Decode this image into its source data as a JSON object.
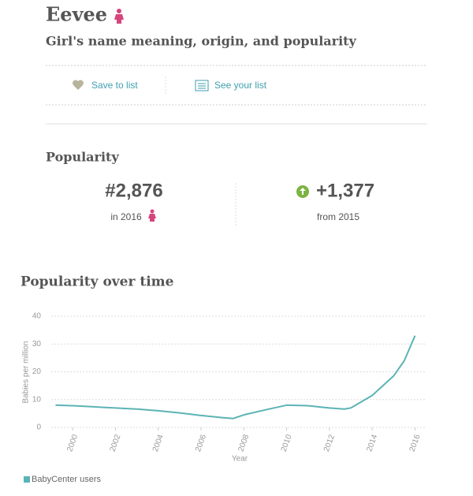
{
  "header": {
    "title": "Eevee",
    "subtitle": "Girl's name meaning, origin, and popularity"
  },
  "actions": [
    "Save to list",
    "See your list"
  ],
  "popularity": {
    "heading": "Popularity",
    "rank": "#2,876",
    "rank_note": "in 2016",
    "change": "+1,377",
    "change_note": "from 2015"
  },
  "chart_data": {
    "type": "line",
    "title": "Popularity over time",
    "x_label": "Year",
    "y_label": "Babies per million",
    "x": [
      1999.2,
      2000,
      2001,
      2002,
      2003,
      2004,
      2005,
      2006,
      2007,
      2007.5,
      2008,
      2009,
      2010,
      2011,
      2012,
      2012.7,
      2013,
      2014,
      2015,
      2015.5,
      2016
    ],
    "series": [
      {
        "name": "BabyCenter users",
        "color": "#5bb3b5",
        "values": [
          8,
          7.8,
          7.4,
          7,
          6.6,
          6,
          5.2,
          4.3,
          3.5,
          3.2,
          4.5,
          6.3,
          8,
          7.8,
          7,
          6.6,
          7,
          11.5,
          18.5,
          24,
          33
        ]
      }
    ],
    "xlim": [
      1999,
      2016.5
    ],
    "xticks": [
      2000,
      2002,
      2004,
      2006,
      2008,
      2010,
      2012,
      2014,
      2016
    ],
    "ylim": [
      0,
      40
    ],
    "yticks": [
      0,
      10,
      20,
      30,
      40
    ],
    "grid": true
  }
}
